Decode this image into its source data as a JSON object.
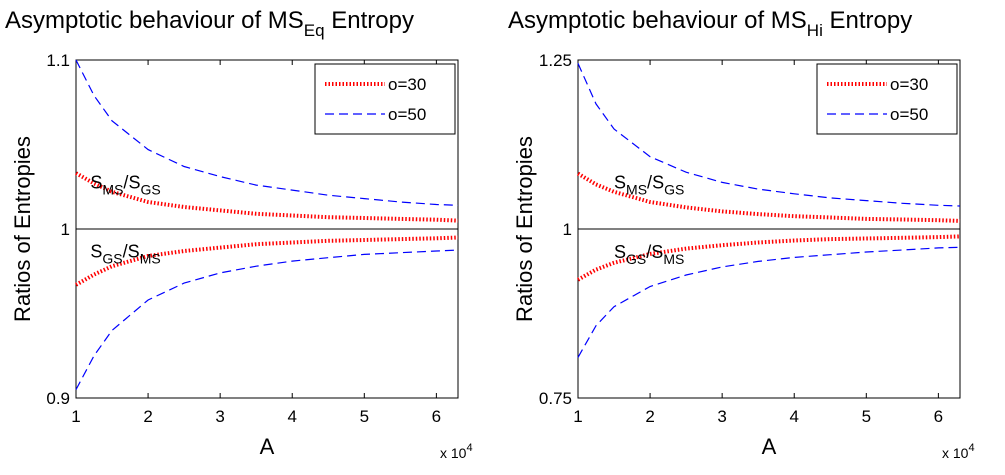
{
  "chart_data": [
    {
      "type": "line",
      "title": {
        "prefix": "Asymptotic behaviour of MS",
        "sub": "Eq",
        "suffix": " Entropy"
      },
      "xlabel": "A",
      "ylabel": "Ratios of Entropies",
      "x_scale_label": "x 10",
      "x_scale_exp": "4",
      "xlim": [
        1,
        6.3
      ],
      "ylim": [
        0.9,
        1.1
      ],
      "xticks": [
        1,
        2,
        3,
        4,
        5,
        6
      ],
      "xtick_labels": [
        "1",
        "2",
        "3",
        "4",
        "5",
        "6"
      ],
      "yticks": [
        0.9,
        1.0,
        1.1
      ],
      "ytick_labels": [
        "0.9",
        "1",
        "1.1"
      ],
      "reference_line": 1.0,
      "legend": {
        "placement": "top-right",
        "entries": [
          "o=30",
          "o=50"
        ]
      },
      "annotations": [
        {
          "num_main": "S",
          "num_sub": "MS",
          "slash": "/",
          "den_main": "S",
          "den_sub": "GS",
          "x": 1.2,
          "y": 1.024
        },
        {
          "num_main": "S",
          "num_sub": "GS",
          "slash": "/",
          "den_main": "S",
          "den_sub": "MS",
          "x": 1.2,
          "y": 0.983
        }
      ],
      "series": [
        {
          "name": "o=30",
          "style": "dotted",
          "color": "#ff0000",
          "x": [
            1,
            1.25,
            1.5,
            2,
            2.5,
            3,
            3.5,
            4,
            4.5,
            5,
            5.5,
            6,
            6.3
          ],
          "y": [
            1.033,
            1.027,
            1.022,
            1.016,
            1.013,
            1.011,
            1.009,
            1.008,
            1.007,
            1.0065,
            1.006,
            1.0055,
            1.005
          ]
        },
        {
          "name": "o=30",
          "style": "dotted",
          "color": "#ff0000",
          "x": [
            1,
            1.25,
            1.5,
            2,
            2.5,
            3,
            3.5,
            4,
            4.5,
            5,
            5.5,
            6,
            6.3
          ],
          "y": [
            0.967,
            0.973,
            0.978,
            0.984,
            0.987,
            0.989,
            0.991,
            0.992,
            0.993,
            0.9935,
            0.994,
            0.9945,
            0.995
          ]
        },
        {
          "name": "o=50",
          "style": "dashed",
          "color": "#0000ff",
          "x": [
            1,
            1.25,
            1.5,
            2,
            2.5,
            3,
            3.5,
            4,
            4.5,
            5,
            5.5,
            6,
            6.3
          ],
          "y": [
            1.1,
            1.079,
            1.064,
            1.047,
            1.037,
            1.031,
            1.026,
            1.023,
            1.02,
            1.018,
            1.016,
            1.0145,
            1.014
          ]
        },
        {
          "name": "o=50",
          "style": "dashed",
          "color": "#0000ff",
          "x": [
            1,
            1.25,
            1.5,
            2,
            2.5,
            3,
            3.5,
            4,
            4.5,
            5,
            5.5,
            6,
            6.3
          ],
          "y": [
            0.905,
            0.925,
            0.94,
            0.958,
            0.968,
            0.974,
            0.978,
            0.981,
            0.983,
            0.985,
            0.986,
            0.987,
            0.9875
          ]
        }
      ]
    },
    {
      "type": "line",
      "title": {
        "prefix": "Asymptotic behaviour of MS",
        "sub": "Hi",
        "suffix": " Entropy"
      },
      "xlabel": "A",
      "ylabel": "Ratios of Entropies",
      "x_scale_label": "x 10",
      "x_scale_exp": "4",
      "xlim": [
        1,
        6.3
      ],
      "ylim": [
        0.75,
        1.25
      ],
      "xticks": [
        1,
        2,
        3,
        4,
        5,
        6
      ],
      "xtick_labels": [
        "1",
        "2",
        "3",
        "4",
        "5",
        "6"
      ],
      "yticks": [
        0.75,
        1.0,
        1.25
      ],
      "ytick_labels": [
        "0.75",
        "1",
        "1.25"
      ],
      "reference_line": 1.0,
      "legend": {
        "placement": "top-right",
        "entries": [
          "o=30",
          "o=50"
        ]
      },
      "annotations": [
        {
          "num_main": "S",
          "num_sub": "MS",
          "slash": "/",
          "den_main": "S",
          "den_sub": "GS",
          "x": 1.5,
          "y": 1.06
        },
        {
          "num_main": "S",
          "num_sub": "GS",
          "slash": "/",
          "den_main": "S",
          "den_sub": "MS",
          "x": 1.5,
          "y": 0.957
        }
      ],
      "series": [
        {
          "name": "o=30",
          "style": "dotted",
          "color": "#ff0000",
          "x": [
            1,
            1.25,
            1.5,
            2,
            2.5,
            3,
            3.5,
            4,
            4.5,
            5,
            5.5,
            6,
            6.3
          ],
          "y": [
            1.082,
            1.066,
            1.055,
            1.04,
            1.032,
            1.026,
            1.022,
            1.019,
            1.017,
            1.015,
            1.014,
            1.013,
            1.012
          ]
        },
        {
          "name": "o=30",
          "style": "dotted",
          "color": "#ff0000",
          "x": [
            1,
            1.25,
            1.5,
            2,
            2.5,
            3,
            3.5,
            4,
            4.5,
            5,
            5.5,
            6,
            6.3
          ],
          "y": [
            0.925,
            0.94,
            0.95,
            0.963,
            0.971,
            0.976,
            0.98,
            0.983,
            0.985,
            0.986,
            0.987,
            0.988,
            0.989
          ]
        },
        {
          "name": "o=50",
          "style": "dashed",
          "color": "#0000ff",
          "x": [
            1,
            1.25,
            1.5,
            2,
            2.5,
            3,
            3.5,
            4,
            4.5,
            5,
            5.5,
            6,
            6.3
          ],
          "y": [
            1.245,
            1.185,
            1.148,
            1.107,
            1.084,
            1.069,
            1.059,
            1.052,
            1.046,
            1.042,
            1.038,
            1.035,
            1.034
          ]
        },
        {
          "name": "o=50",
          "style": "dashed",
          "color": "#0000ff",
          "x": [
            1,
            1.25,
            1.5,
            2,
            2.5,
            3,
            3.5,
            4,
            4.5,
            5,
            5.5,
            6,
            6.3
          ],
          "y": [
            0.81,
            0.857,
            0.885,
            0.915,
            0.932,
            0.944,
            0.952,
            0.958,
            0.962,
            0.966,
            0.969,
            0.972,
            0.973
          ]
        }
      ]
    }
  ]
}
